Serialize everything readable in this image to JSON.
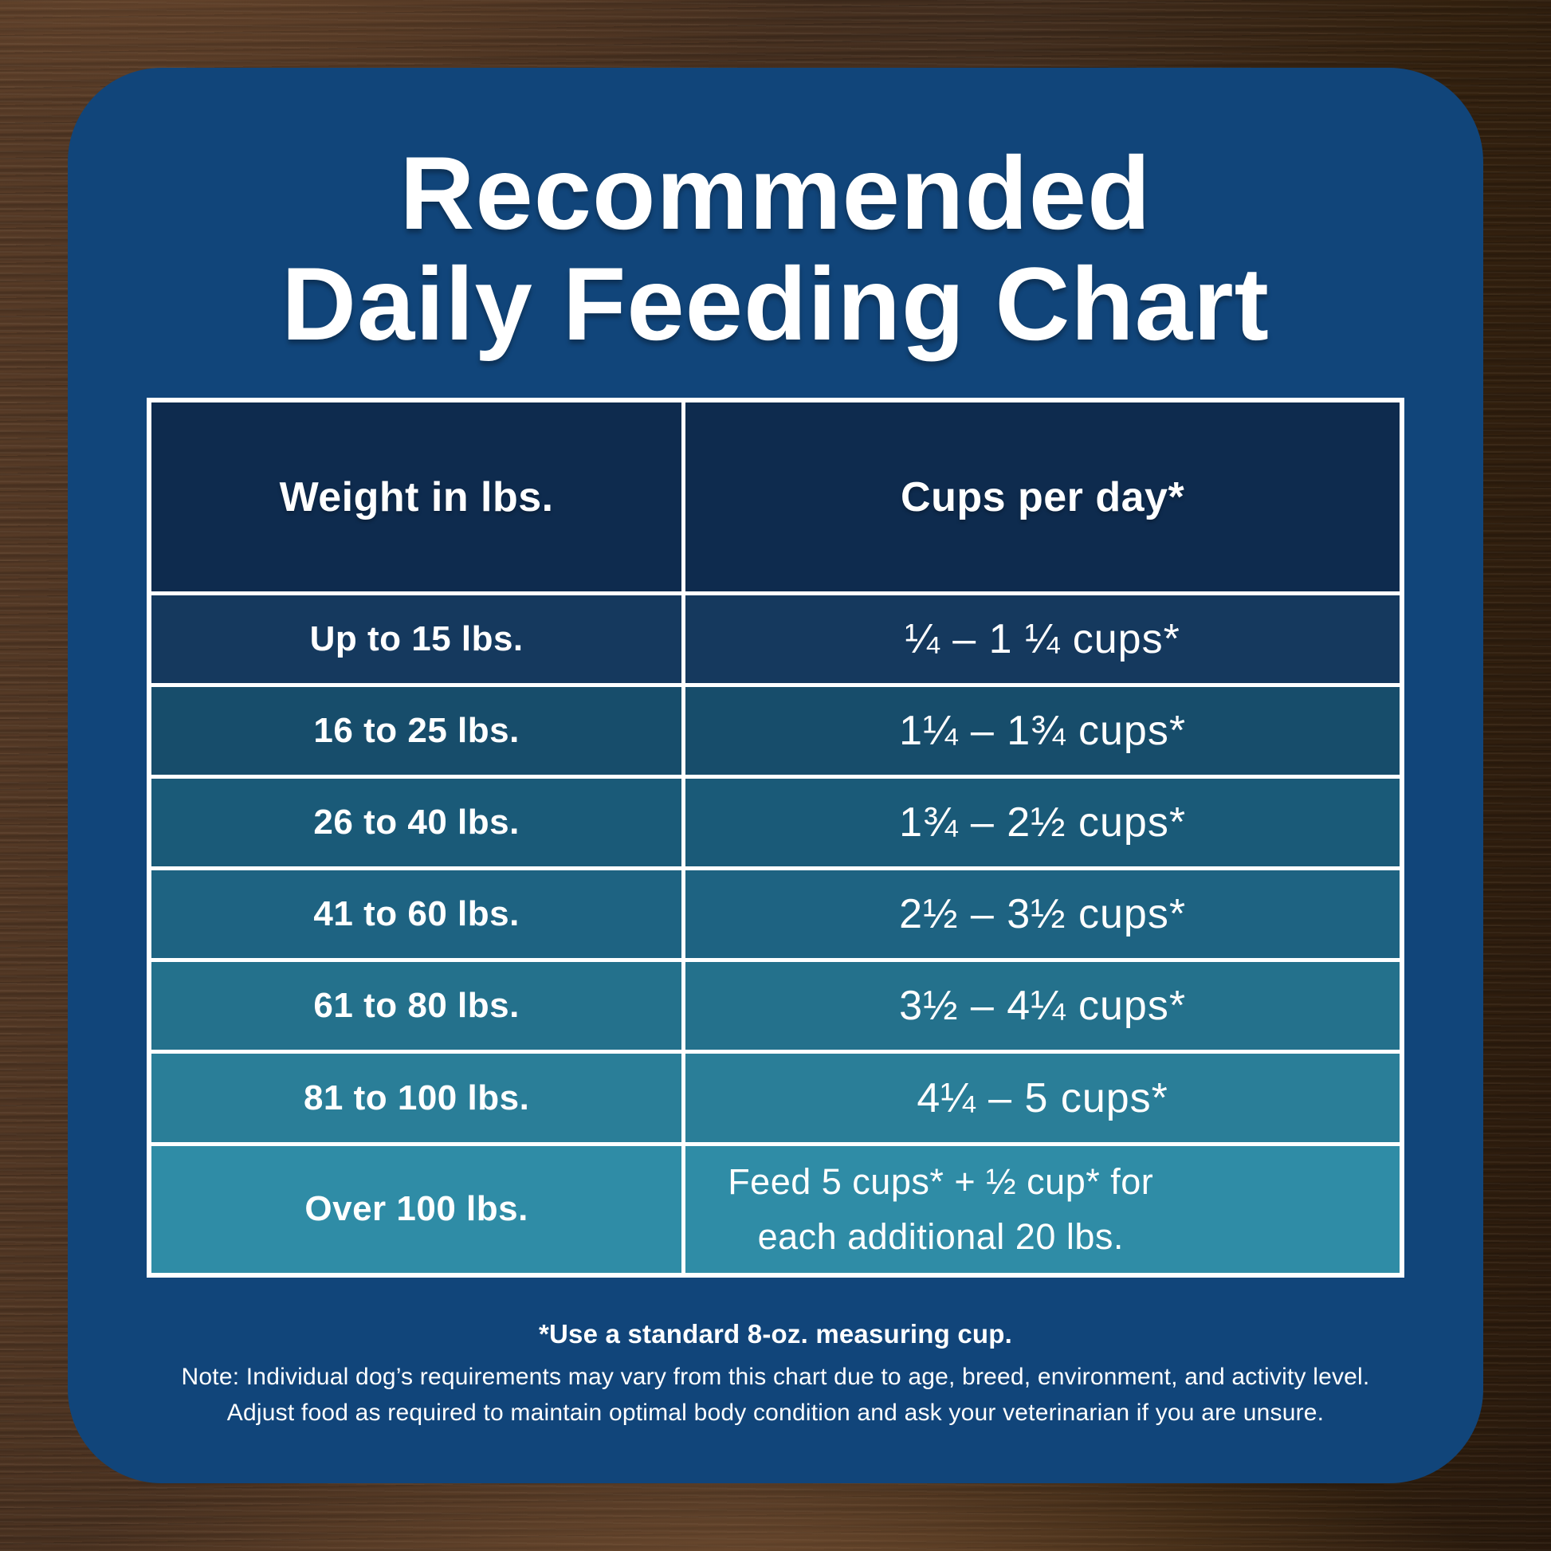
{
  "title": {
    "line1": "Recommended",
    "line2": "Daily Feeding Chart"
  },
  "table": {
    "header_color": "#0E2B4E",
    "columns": [
      "Weight in lbs.",
      "Cups per day*"
    ],
    "rows": [
      {
        "weight": "Up to 15 lbs.",
        "cups": "¼ – 1 ¼ cups*"
      },
      {
        "weight": "16 to 25 lbs.",
        "cups": "1¼ – 1¾ cups*"
      },
      {
        "weight": "26 to 40 lbs.",
        "cups": "1¾ – 2½ cups*"
      },
      {
        "weight": "41 to 60 lbs.",
        "cups": "2½ – 3½ cups*"
      },
      {
        "weight": "61 to 80 lbs.",
        "cups": "3½ – 4¼ cups*"
      },
      {
        "weight": "81 to 100 lbs.",
        "cups": "4¼ – 5 cups*"
      },
      {
        "weight": "Over 100 lbs.",
        "cups": "Feed 5 cups* + ½ cup* for each additional 20 lbs."
      }
    ],
    "row_colors": [
      "#15395E",
      "#174D6B",
      "#1A5A78",
      "#1E6382",
      "#24718C",
      "#2A7E98",
      "#2F8CA6"
    ]
  },
  "footnotes": {
    "cup": "*Use a standard 8-oz. measuring cup.",
    "note1": "Note: Individual dog’s requirements may vary from this chart due to age, breed, environment, and activity level.",
    "note2": "Adjust food as required to maintain optimal body condition and ask your veterinarian if you are unsure."
  },
  "colors": {
    "card": "#11457A",
    "text": "#FFFFFF",
    "border": "#FFFFFF",
    "wood_base": "#4A3121"
  },
  "chart_data": {
    "type": "table",
    "title": "Recommended Daily Feeding Chart",
    "columns": [
      "Weight in lbs.",
      "Cups per day*"
    ],
    "rows": [
      [
        "Up to 15 lbs.",
        "¼ – 1 ¼ cups*"
      ],
      [
        "16 to 25 lbs.",
        "1¼ – 1¾ cups*"
      ],
      [
        "26 to 40 lbs.",
        "1¾ – 2½ cups*"
      ],
      [
        "41 to 60 lbs.",
        "2½ – 3½ cups*"
      ],
      [
        "61 to 80 lbs.",
        "3½ – 4¼ cups*"
      ],
      [
        "81 to 100 lbs.",
        "4¼ – 5 cups*"
      ],
      [
        "Over 100 lbs.",
        "Feed 5 cups* + ½ cup* for each additional 20 lbs."
      ]
    ],
    "notes": [
      "*Use a standard 8-oz. measuring cup.",
      "Note: Individual dog’s requirements may vary from this chart due to age, breed, environment, and activity level.",
      "Adjust food as required to maintain optimal body condition and ask your veterinarian if you are unsure."
    ]
  }
}
